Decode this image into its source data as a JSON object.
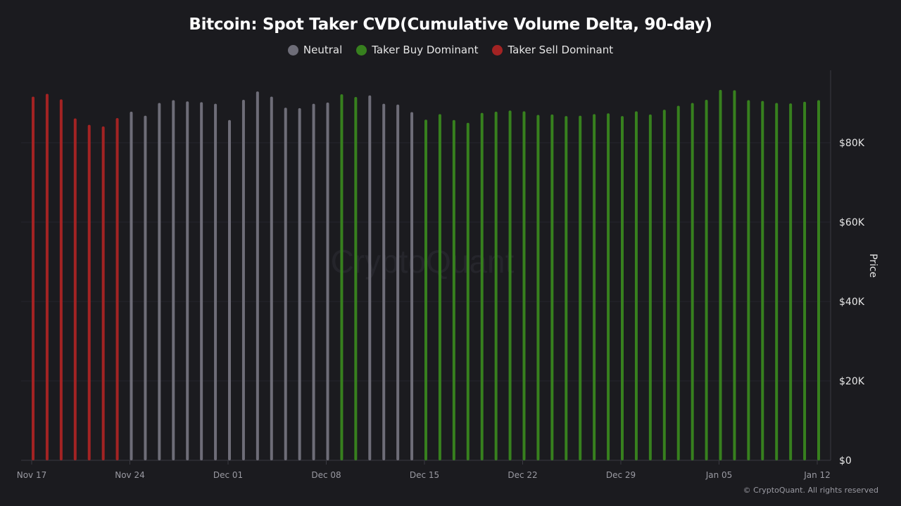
{
  "chart_data": {
    "type": "bar",
    "title": "Bitcoin: Spot Taker CVD(Cumulative Volume Delta, 90-day)",
    "ylabel": "Price",
    "xlabel": "",
    "ylim": [
      0,
      98000
    ],
    "y_ticks": [
      {
        "value": 0,
        "label": "$0"
      },
      {
        "value": 20000,
        "label": "$20K"
      },
      {
        "value": 40000,
        "label": "$40K"
      },
      {
        "value": 60000,
        "label": "$60K"
      },
      {
        "value": 80000,
        "label": "$80K"
      }
    ],
    "x_ticks": [
      "Nov 17",
      "Nov 24",
      "Dec 01",
      "Dec 08",
      "Dec 15",
      "Dec 22",
      "Dec 29",
      "Jan 05",
      "Jan 12"
    ],
    "grid": true,
    "y_axis_side": "right",
    "legend_position": "top",
    "legend": [
      {
        "key": "neutral",
        "label": "Neutral",
        "color": "#6e6d78"
      },
      {
        "key": "buy",
        "label": "Taker Buy Dominant",
        "color": "#37801e"
      },
      {
        "key": "sell",
        "label": "Taker Sell Dominant",
        "color": "#a32323"
      }
    ],
    "x": [
      "Nov 17",
      "Nov 18",
      "Nov 19",
      "Nov 20",
      "Nov 21",
      "Nov 22",
      "Nov 23",
      "Nov 24",
      "Nov 25",
      "Nov 26",
      "Nov 27",
      "Nov 28",
      "Nov 29",
      "Nov 30",
      "Dec 01",
      "Dec 02",
      "Dec 03",
      "Dec 04",
      "Dec 05",
      "Dec 06",
      "Dec 07",
      "Dec 08",
      "Dec 09",
      "Dec 10",
      "Dec 11",
      "Dec 12",
      "Dec 13",
      "Dec 14",
      "Dec 15",
      "Dec 16",
      "Dec 17",
      "Dec 18",
      "Dec 19",
      "Dec 20",
      "Dec 21",
      "Dec 22",
      "Dec 23",
      "Dec 24",
      "Dec 25",
      "Dec 26",
      "Dec 27",
      "Dec 28",
      "Dec 29",
      "Dec 30",
      "Dec 31",
      "Jan 01",
      "Jan 02",
      "Jan 03",
      "Jan 04",
      "Jan 05",
      "Jan 06",
      "Jan 07",
      "Jan 08",
      "Jan 09",
      "Jan 10",
      "Jan 11",
      "Jan 12"
    ],
    "values": [
      91600,
      92300,
      90900,
      86100,
      84500,
      84100,
      86200,
      87800,
      86800,
      90000,
      90700,
      90400,
      90200,
      89800,
      85700,
      90800,
      92900,
      91600,
      88800,
      88700,
      89800,
      90100,
      92200,
      91500,
      91900,
      89800,
      89600,
      87700,
      85800,
      87200,
      85700,
      85000,
      87500,
      87800,
      88100,
      87900,
      87000,
      87100,
      86700,
      86800,
      87200,
      87400,
      86700,
      87900,
      87100,
      88300,
      89300,
      90000,
      90800,
      93300,
      93200,
      90700,
      90500,
      90000,
      89900,
      90300,
      90700
    ],
    "categories": [
      "sell",
      "sell",
      "sell",
      "sell",
      "sell",
      "sell",
      "sell",
      "neutral",
      "neutral",
      "neutral",
      "neutral",
      "neutral",
      "neutral",
      "neutral",
      "neutral",
      "neutral",
      "neutral",
      "neutral",
      "neutral",
      "neutral",
      "neutral",
      "neutral",
      "buy",
      "buy",
      "neutral",
      "neutral",
      "neutral",
      "neutral",
      "buy",
      "buy",
      "buy",
      "buy",
      "buy",
      "buy",
      "buy",
      "buy",
      "buy",
      "buy",
      "buy",
      "buy",
      "buy",
      "buy",
      "buy",
      "buy",
      "buy",
      "buy",
      "buy",
      "buy",
      "buy",
      "buy",
      "buy",
      "buy",
      "buy",
      "buy",
      "buy",
      "buy",
      "buy"
    ]
  },
  "watermark": "CryptoQuant",
  "copyright": "© CryptoQuant. All rights reserved"
}
